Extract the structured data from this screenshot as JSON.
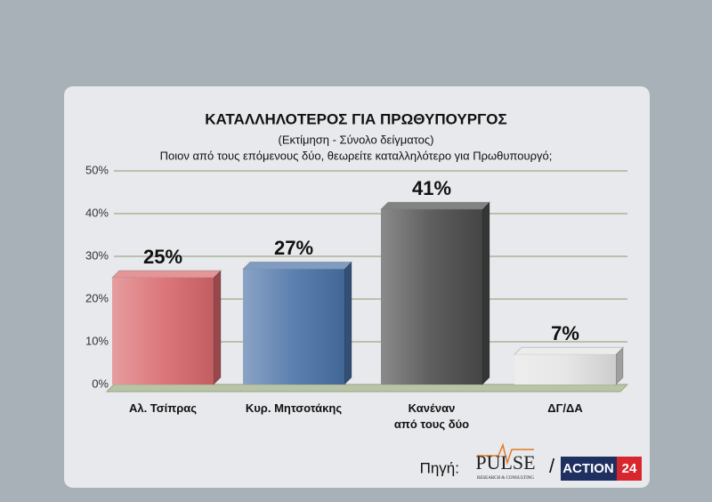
{
  "chart_data": {
    "type": "bar3d",
    "title": "ΚΑΤΑΛΛΗΛΟΤΕΡΟΣ ΓΙΑ ΠΡΩΘΥΠΟΥΡΓΟΣ",
    "subtitle": "(Εκτίμηση - Σύνολο δείγματος)",
    "question": "Ποιον από τους επόμενους δύο, θεωρείτε καταλληλότερο για Πρωθυπουργό;",
    "categories": [
      "Αλ. Τσίπρας",
      "Κυρ. Μητσοτάκης",
      "Κανέναν\nαπό τους δύο",
      "ΔΓ/ΔΑ"
    ],
    "values": [
      25,
      27,
      41,
      7
    ],
    "value_labels": [
      "25%",
      "27%",
      "41%",
      "7%"
    ],
    "colors": [
      "#d8686c",
      "#4a72a6",
      "#4c4c4c",
      "#e4e4e4"
    ],
    "ylim": [
      0,
      50
    ],
    "yticks": [
      {
        "value": 0,
        "label": "0%"
      },
      {
        "value": 10,
        "label": "10%"
      },
      {
        "value": 20,
        "label": "20%"
      },
      {
        "value": 30,
        "label": "30%"
      },
      {
        "value": 40,
        "label": "40%"
      },
      {
        "value": 50,
        "label": "50%"
      }
    ],
    "grid": true
  },
  "footer": {
    "source_label": "Πηγή:",
    "logo1": "PULSE",
    "logo1_tagline": "RESEARCH & CONSULTING",
    "separator": "/",
    "logo2_word": "ACTION",
    "logo2_number": "24"
  }
}
